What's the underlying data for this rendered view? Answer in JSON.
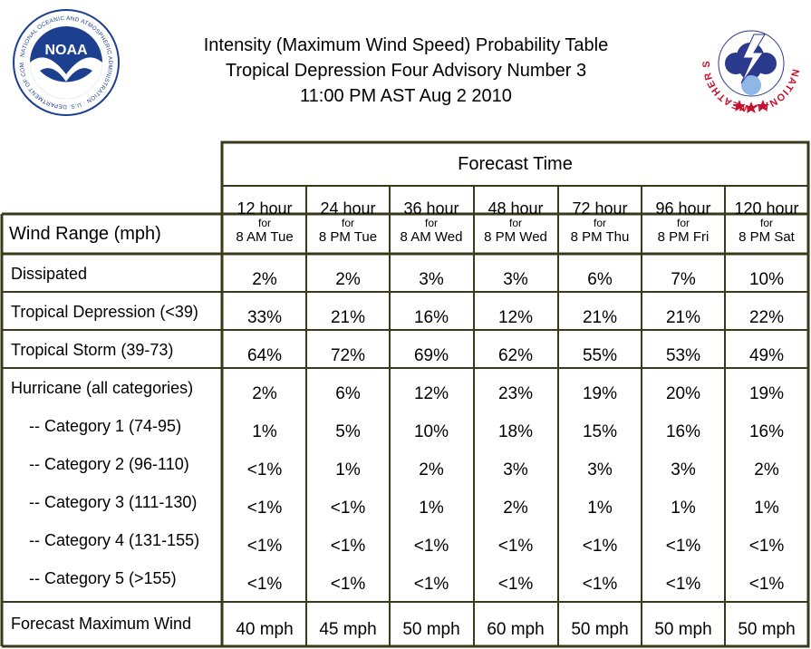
{
  "header": {
    "title_line1": "Intensity (Maximum Wind Speed) Probability Table",
    "title_line2": "Tropical Depression Four Advisory Number 3",
    "title_line3": "11:00 PM AST Aug 2 2010",
    "noaa_logo_text": "NOAA",
    "noaa_ring_text": "NATIONAL OCEANIC AND ATMOSPHERIC ADMINISTRATION · U.S. DEPARTMENT OF COMMERCE",
    "nws_ring_text": "NATIONAL WEATHER SERVICE"
  },
  "table": {
    "forecast_time_label": "Forecast Time",
    "wind_range_label": "Wind Range (mph)",
    "columns": [
      {
        "hour": "12 hour",
        "for": "for",
        "when": "8 AM Tue"
      },
      {
        "hour": "24 hour",
        "for": "for",
        "when": "8 PM Tue"
      },
      {
        "hour": "36 hour",
        "for": "for",
        "when": "8 AM Wed"
      },
      {
        "hour": "48 hour",
        "for": "for",
        "when": "8 PM Wed"
      },
      {
        "hour": "72 hour",
        "for": "for",
        "when": "8 PM Thu"
      },
      {
        "hour": "96 hour",
        "for": "for",
        "when": "8 PM Fri"
      },
      {
        "hour": "120 hour",
        "for": "for",
        "when": "8 PM Sat"
      }
    ],
    "rows": [
      {
        "label": "Dissipated",
        "values": [
          "2%",
          "2%",
          "3%",
          "3%",
          "6%",
          "7%",
          "10%"
        ]
      },
      {
        "label": "Tropical Depression (<39)",
        "values": [
          "33%",
          "21%",
          "16%",
          "12%",
          "21%",
          "21%",
          "22%"
        ]
      },
      {
        "label": "Tropical Storm (39-73)",
        "values": [
          "64%",
          "72%",
          "69%",
          "62%",
          "55%",
          "53%",
          "49%"
        ]
      },
      {
        "label": "Hurricane (all categories)",
        "values": [
          "2%",
          "6%",
          "12%",
          "23%",
          "19%",
          "20%",
          "19%"
        ]
      },
      {
        "label": "-- Category 1 (74-95)",
        "values": [
          "1%",
          "5%",
          "10%",
          "18%",
          "15%",
          "16%",
          "16%"
        ]
      },
      {
        "label": "-- Category 2 (96-110)",
        "values": [
          "<1%",
          "1%",
          "2%",
          "3%",
          "3%",
          "3%",
          "2%"
        ]
      },
      {
        "label": "-- Category 3 (111-130)",
        "values": [
          "<1%",
          "<1%",
          "1%",
          "2%",
          "1%",
          "1%",
          "1%"
        ]
      },
      {
        "label": "-- Category 4 (131-155)",
        "values": [
          "<1%",
          "<1%",
          "<1%",
          "<1%",
          "<1%",
          "<1%",
          "<1%"
        ]
      },
      {
        "label": "-- Category 5 (>155)",
        "values": [
          "<1%",
          "<1%",
          "<1%",
          "<1%",
          "<1%",
          "<1%",
          "<1%"
        ]
      },
      {
        "label": "Forecast Maximum Wind",
        "values": [
          "40 mph",
          "45 mph",
          "50 mph",
          "60 mph",
          "50 mph",
          "50 mph",
          "50 mph"
        ]
      }
    ]
  },
  "colors": {
    "border": "#3a3a1a",
    "noaa_blue": "#1d3f8f",
    "nws_red": "#c8102e",
    "nws_blue": "#2b3a8c"
  }
}
